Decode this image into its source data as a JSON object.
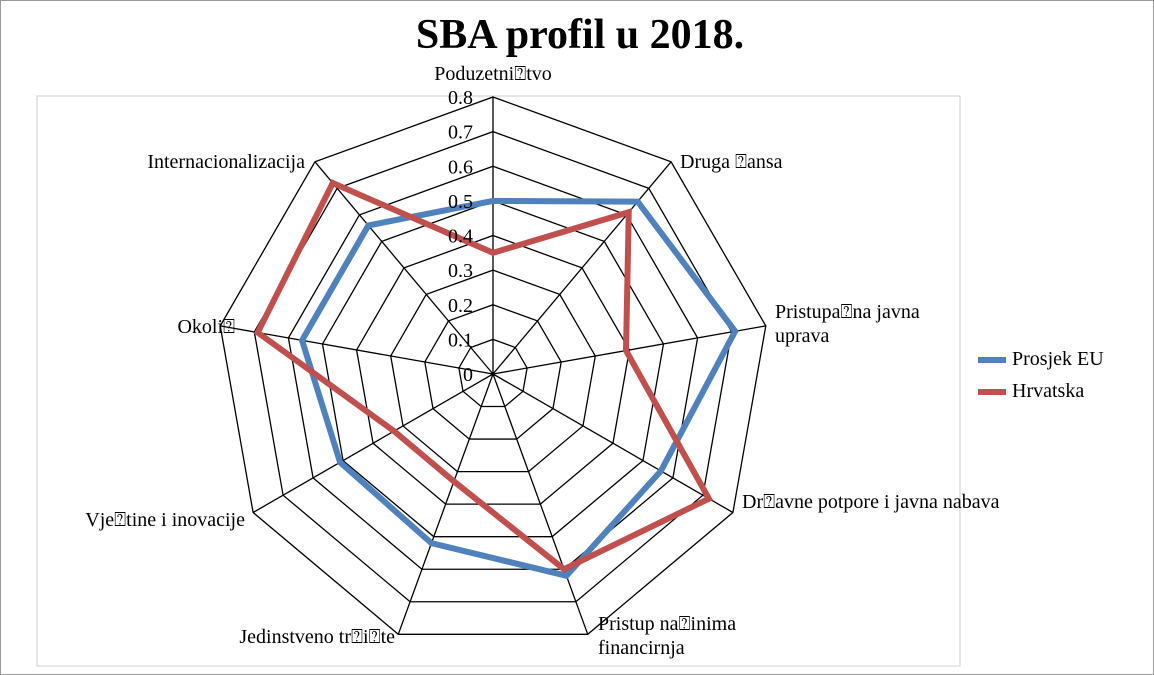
{
  "chart_data": {
    "type": "radar",
    "title": "SBA profil u 2018.",
    "categories": [
      "Poduzetni⍰tvo",
      "Druga ⍰ansa",
      "Pristupa⍰na javna uprava",
      "Dr⍰avne potpore i javna nabava",
      "Pristup na⍰inima financirnja",
      "Jedinstveno tr⍰i⍰te",
      "Vje⍰tine i inovacije",
      "Okoli⍰",
      "Internacionalizacija"
    ],
    "series": [
      {
        "name": "Prosjek EU",
        "color": "#4f81bd",
        "values": [
          0.5,
          0.65,
          0.71,
          0.56,
          0.62,
          0.52,
          0.51,
          0.56,
          0.56
        ]
      },
      {
        "name": "Hrvatska",
        "color": "#c0504d",
        "values": [
          0.35,
          0.61,
          0.39,
          0.72,
          0.6,
          0.33,
          0.33,
          0.69,
          0.72
        ]
      }
    ],
    "ylim": [
      0,
      0.8
    ],
    "yticks": [
      0,
      0.1,
      0.2,
      0.3,
      0.4,
      0.5,
      0.6,
      0.7,
      0.8
    ],
    "grid": true,
    "legend": "right"
  }
}
